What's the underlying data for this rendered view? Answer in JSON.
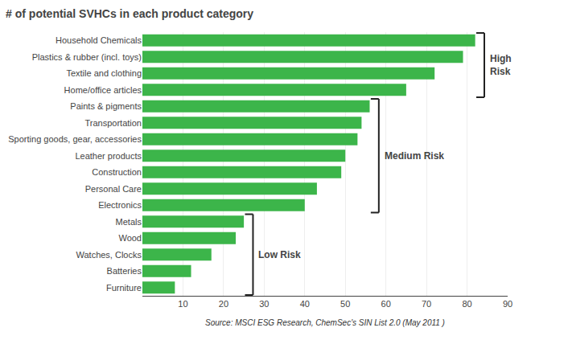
{
  "chart_data": {
    "type": "bar",
    "orientation": "horizontal",
    "title": "# of potential SVHCs in each product category",
    "categories": [
      "Household Chemicals",
      "Plastics & rubber (incl. toys)",
      "Textile and clothing",
      "Home/office articles",
      "Paints & pigments",
      "Transportation",
      "Sporting goods, gear, accessories",
      "Leather products",
      "Construction",
      "Personal Care",
      "Electronics",
      "Metals",
      "Wood",
      "Watches, Clocks",
      "Batteries",
      "Furniture"
    ],
    "values": [
      82,
      79,
      72,
      65,
      56,
      54,
      53,
      50,
      49,
      43,
      40,
      25,
      23,
      17,
      12,
      8
    ],
    "color": "#3cb54a",
    "xlim": [
      0,
      90
    ],
    "xticks": [
      10,
      20,
      30,
      40,
      50,
      60,
      70,
      80,
      90
    ],
    "grid": true,
    "annotations": [
      {
        "text": "High\nRisk",
        "from": "Household Chemicals",
        "to": "Home/office articles"
      },
      {
        "text": "Medium Risk",
        "from": "Paints & pigments",
        "to": "Electronics"
      },
      {
        "text": "Low Risk",
        "from": "Metals",
        "to": "Furniture"
      },
      {
        "text": "Source: MSCI ESG Research, ChemSec's SIN List 2.0 (May 2011 )"
      }
    ]
  }
}
